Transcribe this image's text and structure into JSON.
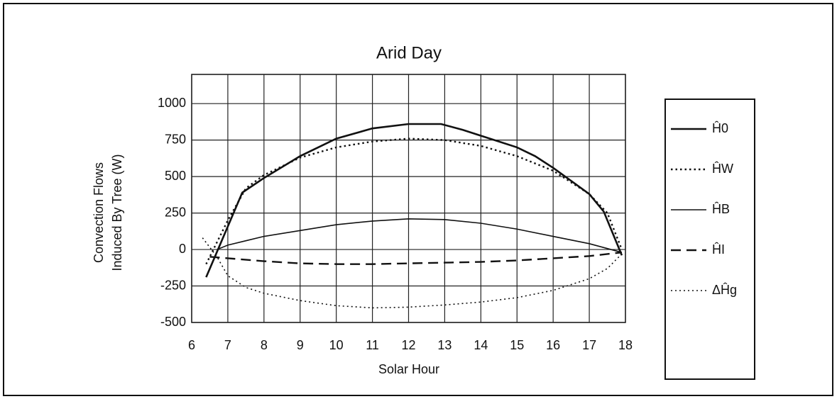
{
  "chart_data": {
    "type": "line",
    "title": "Arid Day",
    "x_label": "Solar Hour",
    "y_label": [
      "Convection Flows",
      "Induced By Tree (W)"
    ],
    "xlim": [
      6,
      18
    ],
    "xticks": [
      6,
      7,
      8,
      9,
      10,
      11,
      12,
      13,
      14,
      15,
      16,
      17,
      18
    ],
    "ylim": [
      -500,
      1200
    ],
    "yticks": [
      -500,
      -250,
      0,
      250,
      500,
      750,
      1000
    ],
    "grid": true,
    "legend": "right",
    "series": [
      {
        "name": "Ĥ0",
        "color": "#111111",
        "style": "solid",
        "width": 2.6,
        "x": [
          6.4,
          7.4,
          8,
          9,
          10,
          11,
          12,
          12.9,
          13.5,
          14,
          15,
          15.5,
          16,
          17,
          17.4,
          17.9
        ],
        "values": [
          -190,
          390,
          490,
          640,
          760,
          830,
          860,
          860,
          820,
          780,
          700,
          640,
          560,
          380,
          260,
          -40
        ]
      },
      {
        "name": "ĤW",
        "color": "#111111",
        "style": "dotted",
        "width": 2.4,
        "x": [
          6.4,
          7,
          7.5,
          8,
          9,
          10,
          11,
          12,
          13,
          14,
          15,
          16,
          17,
          17.5,
          17.9
        ],
        "values": [
          -100,
          200,
          420,
          510,
          630,
          700,
          740,
          760,
          750,
          710,
          640,
          540,
          380,
          250,
          0
        ]
      },
      {
        "name": "ĤB",
        "color": "#111111",
        "style": "solid",
        "width": 1.6,
        "x": [
          6.7,
          7,
          7.5,
          8,
          9,
          10,
          11,
          12,
          13,
          14,
          15,
          16,
          17,
          17.9
        ],
        "values": [
          0,
          30,
          60,
          90,
          130,
          170,
          195,
          210,
          205,
          180,
          140,
          90,
          40,
          -20
        ]
      },
      {
        "name": "ĤI",
        "color": "#111111",
        "style": "dashed",
        "width": 2.4,
        "x": [
          6.5,
          7,
          8,
          9,
          10,
          11,
          12,
          13,
          14,
          15,
          16,
          17,
          17.9
        ],
        "values": [
          -50,
          -60,
          -80,
          -95,
          -100,
          -100,
          -95,
          -90,
          -85,
          -75,
          -60,
          -45,
          -20
        ]
      },
      {
        "name": "ΔĤg",
        "color": "#111111",
        "style": "dotted",
        "width": 1.6,
        "x": [
          6.3,
          6.7,
          7,
          7.5,
          8,
          9,
          10,
          11,
          12,
          13,
          14,
          15,
          16,
          17,
          17.5,
          17.9
        ],
        "values": [
          80,
          -50,
          -180,
          -260,
          -300,
          -350,
          -385,
          -400,
          -395,
          -380,
          -360,
          -330,
          -280,
          -200,
          -130,
          -30
        ]
      }
    ]
  }
}
